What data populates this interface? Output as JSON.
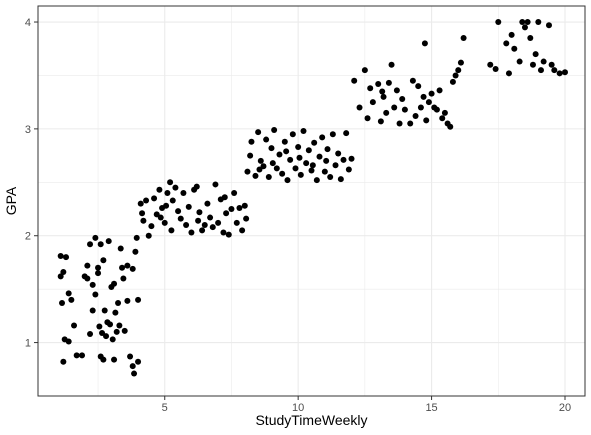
{
  "chart_data": {
    "type": "scatter",
    "title": "",
    "xlabel": "StudyTimeWeekly",
    "ylabel": "GPA",
    "xlim": [
      0.25,
      20.75
    ],
    "ylim": [
      0.5,
      4.15
    ],
    "x_ticks": [
      5,
      10,
      15,
      20
    ],
    "x_tick_labels": [
      "5",
      "10",
      "15",
      "20"
    ],
    "y_ticks": [
      1,
      2,
      3,
      4
    ],
    "y_tick_labels": [
      "1",
      "2",
      "3",
      "4"
    ],
    "grid": true,
    "legend": "none",
    "point_color": "#000000",
    "panel_border_color": "#333333",
    "grid_color": "#ebebeb",
    "series": [
      {
        "points": [
          [
            1.1,
            1.81
          ],
          [
            1.2,
            1.66
          ],
          [
            1.3,
            1.8
          ],
          [
            1.15,
            1.37
          ],
          [
            1.4,
            1.46
          ],
          [
            1.1,
            1.62
          ],
          [
            1.25,
            1.03
          ],
          [
            1.2,
            0.82
          ],
          [
            1.4,
            1.01
          ],
          [
            1.5,
            1.4
          ],
          [
            1.6,
            1.16
          ],
          [
            1.7,
            0.88
          ],
          [
            1.9,
            0.88
          ],
          [
            2.0,
            1.62
          ],
          [
            2.1,
            1.72
          ],
          [
            2.2,
            1.92
          ],
          [
            2.1,
            1.6
          ],
          [
            2.3,
            1.3
          ],
          [
            2.4,
            1.98
          ],
          [
            2.5,
            1.7
          ],
          [
            2.3,
            1.54
          ],
          [
            2.4,
            1.45
          ],
          [
            2.5,
            1.65
          ],
          [
            2.6,
            1.92
          ],
          [
            2.7,
            1.77
          ],
          [
            2.55,
            1.15
          ],
          [
            2.65,
            1.09
          ],
          [
            2.75,
            1.3
          ],
          [
            2.8,
            1.06
          ],
          [
            2.6,
            0.87
          ],
          [
            2.7,
            0.84
          ],
          [
            2.9,
            1.95
          ],
          [
            3.0,
            1.52
          ],
          [
            3.1,
            1.55
          ],
          [
            2.95,
            1.17
          ],
          [
            3.05,
            1.03
          ],
          [
            3.1,
            0.84
          ],
          [
            3.2,
            1.1
          ],
          [
            3.25,
            1.37
          ],
          [
            3.3,
            1.16
          ],
          [
            3.4,
            1.7
          ],
          [
            3.35,
            1.88
          ],
          [
            3.45,
            1.6
          ],
          [
            3.5,
            1.11
          ],
          [
            3.6,
            1.39
          ],
          [
            3.7,
            0.87
          ],
          [
            3.8,
            1.69
          ],
          [
            3.8,
            0.78
          ],
          [
            3.85,
            0.71
          ],
          [
            3.9,
            1.85
          ],
          [
            3.95,
            1.98
          ],
          [
            4.0,
            1.4
          ],
          [
            4.0,
            0.82
          ],
          [
            3.6,
            1.72
          ],
          [
            2.2,
            1.08
          ],
          [
            2.85,
            1.19
          ],
          [
            3.15,
            1.28
          ],
          [
            4.1,
            2.3
          ],
          [
            4.2,
            2.14
          ],
          [
            4.15,
            2.21
          ],
          [
            4.3,
            2.33
          ],
          [
            4.5,
            2.09
          ],
          [
            4.6,
            2.35
          ],
          [
            4.7,
            2.2
          ],
          [
            4.8,
            2.43
          ],
          [
            4.85,
            2.17
          ],
          [
            4.9,
            2.26
          ],
          [
            5.0,
            2.12
          ],
          [
            5.1,
            2.4
          ],
          [
            5.2,
            2.5
          ],
          [
            5.25,
            2.05
          ],
          [
            5.3,
            2.33
          ],
          [
            5.4,
            2.45
          ],
          [
            5.5,
            2.23
          ],
          [
            5.6,
            2.16
          ],
          [
            5.7,
            2.4
          ],
          [
            5.8,
            2.1
          ],
          [
            5.9,
            2.27
          ],
          [
            6.0,
            2.03
          ],
          [
            6.1,
            2.43
          ],
          [
            6.2,
            2.46
          ],
          [
            6.3,
            2.22
          ],
          [
            6.4,
            2.05
          ],
          [
            6.5,
            2.1
          ],
          [
            6.6,
            2.3
          ],
          [
            6.7,
            2.17
          ],
          [
            6.8,
            2.08
          ],
          [
            6.9,
            2.48
          ],
          [
            7.0,
            2.12
          ],
          [
            7.1,
            2.34
          ],
          [
            7.2,
            2.03
          ],
          [
            7.3,
            2.21
          ],
          [
            7.4,
            2.01
          ],
          [
            7.5,
            2.25
          ],
          [
            7.6,
            2.4
          ],
          [
            7.7,
            2.12
          ],
          [
            7.8,
            2.26
          ],
          [
            7.9,
            2.05
          ],
          [
            8.0,
            2.28
          ],
          [
            8.05,
            2.16
          ],
          [
            4.4,
            2.0
          ],
          [
            5.05,
            2.28
          ],
          [
            6.25,
            2.14
          ],
          [
            7.25,
            2.36
          ],
          [
            8.1,
            2.6
          ],
          [
            8.2,
            2.75
          ],
          [
            8.25,
            2.88
          ],
          [
            8.4,
            2.56
          ],
          [
            8.5,
            2.97
          ],
          [
            8.6,
            2.7
          ],
          [
            8.7,
            2.65
          ],
          [
            8.8,
            2.9
          ],
          [
            8.9,
            2.55
          ],
          [
            9.0,
            2.82
          ],
          [
            9.1,
            2.99
          ],
          [
            9.2,
            2.63
          ],
          [
            9.3,
            2.76
          ],
          [
            9.4,
            2.58
          ],
          [
            9.5,
            2.88
          ],
          [
            9.6,
            2.52
          ],
          [
            9.7,
            2.71
          ],
          [
            9.8,
            2.95
          ],
          [
            9.9,
            2.63
          ],
          [
            10.0,
            2.83
          ],
          [
            10.1,
            2.57
          ],
          [
            10.2,
            2.98
          ],
          [
            10.3,
            2.68
          ],
          [
            10.4,
            2.8
          ],
          [
            10.5,
            2.61
          ],
          [
            10.6,
            2.87
          ],
          [
            10.7,
            2.52
          ],
          [
            10.8,
            2.74
          ],
          [
            10.9,
            2.92
          ],
          [
            11.0,
            2.6
          ],
          [
            11.1,
            2.81
          ],
          [
            11.2,
            2.55
          ],
          [
            11.3,
            2.95
          ],
          [
            11.4,
            2.66
          ],
          [
            11.5,
            2.77
          ],
          [
            11.6,
            2.53
          ],
          [
            11.7,
            2.71
          ],
          [
            11.8,
            2.96
          ],
          [
            11.9,
            2.62
          ],
          [
            12.0,
            2.72
          ],
          [
            9.05,
            2.68
          ],
          [
            10.05,
            2.73
          ],
          [
            11.05,
            2.7
          ],
          [
            8.55,
            2.62
          ],
          [
            9.55,
            2.79
          ],
          [
            10.55,
            2.66
          ],
          [
            12.1,
            3.45
          ],
          [
            12.3,
            3.2
          ],
          [
            12.5,
            3.55
          ],
          [
            12.6,
            3.1
          ],
          [
            12.7,
            3.38
          ],
          [
            12.8,
            3.25
          ],
          [
            13.0,
            3.42
          ],
          [
            13.1,
            3.07
          ],
          [
            13.2,
            3.3
          ],
          [
            13.3,
            3.15
          ],
          [
            13.4,
            3.43
          ],
          [
            13.5,
            3.6
          ],
          [
            13.6,
            3.2
          ],
          [
            13.7,
            3.36
          ],
          [
            13.8,
            3.05
          ],
          [
            13.9,
            3.28
          ],
          [
            14.0,
            3.18
          ],
          [
            14.2,
            3.05
          ],
          [
            14.3,
            3.45
          ],
          [
            14.4,
            3.12
          ],
          [
            14.5,
            3.4
          ],
          [
            14.6,
            3.2
          ],
          [
            14.7,
            3.3
          ],
          [
            14.75,
            3.8
          ],
          [
            14.8,
            3.08
          ],
          [
            14.9,
            3.25
          ],
          [
            15.0,
            3.33
          ],
          [
            15.1,
            3.2
          ],
          [
            15.2,
            3.18
          ],
          [
            15.3,
            3.36
          ],
          [
            15.4,
            3.1
          ],
          [
            15.5,
            3.15
          ],
          [
            15.6,
            3.05
          ],
          [
            15.7,
            3.02
          ],
          [
            15.8,
            3.44
          ],
          [
            15.9,
            3.5
          ],
          [
            16.0,
            3.55
          ],
          [
            16.1,
            3.62
          ],
          [
            16.2,
            3.85
          ],
          [
            13.15,
            3.35
          ],
          [
            17.2,
            3.6
          ],
          [
            17.4,
            3.56
          ],
          [
            17.5,
            4.0
          ],
          [
            17.8,
            3.8
          ],
          [
            17.9,
            3.52
          ],
          [
            18.0,
            3.88
          ],
          [
            18.1,
            3.75
          ],
          [
            18.3,
            3.63
          ],
          [
            18.4,
            4.0
          ],
          [
            18.5,
            3.95
          ],
          [
            18.6,
            4.0
          ],
          [
            18.7,
            3.85
          ],
          [
            18.8,
            3.6
          ],
          [
            18.9,
            3.7
          ],
          [
            19.0,
            4.0
          ],
          [
            19.1,
            3.55
          ],
          [
            19.2,
            3.63
          ],
          [
            19.4,
            3.97
          ],
          [
            19.5,
            3.6
          ],
          [
            19.6,
            3.55
          ],
          [
            19.8,
            3.52
          ],
          [
            20.0,
            3.53
          ]
        ]
      }
    ]
  }
}
